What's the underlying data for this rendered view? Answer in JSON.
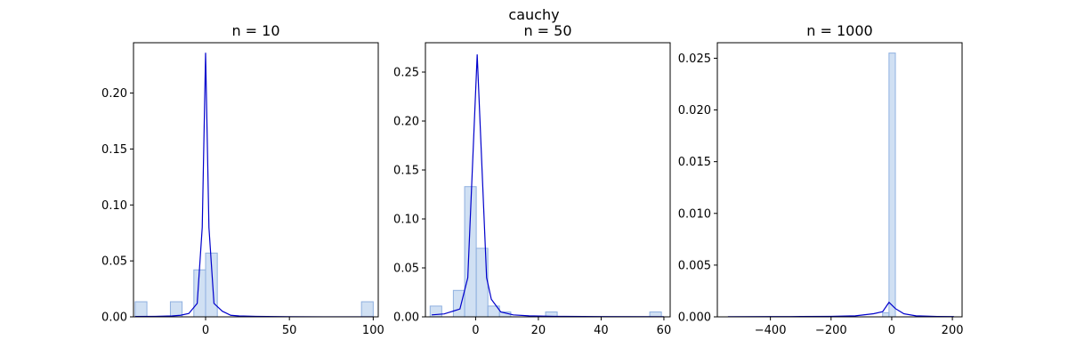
{
  "figure": {
    "title": "cauchy"
  },
  "chart_data": [
    {
      "type": "bar",
      "title": "n = 10",
      "xlim": [
        -43,
        103
      ],
      "ylim": [
        0,
        0.245
      ],
      "xticks": [
        0,
        50,
        100
      ],
      "xtick_labels": [
        "0",
        "50",
        "100"
      ],
      "yticks": [
        0,
        0.05,
        0.1,
        0.15,
        0.2
      ],
      "ytick_labels": [
        "0.00",
        "0.05",
        "0.10",
        "0.15",
        "0.20"
      ],
      "histogram": {
        "bins": [
          {
            "x0": -42,
            "x1": -35,
            "value": 0.0135
          },
          {
            "x0": -21,
            "x1": -14,
            "value": 0.0135
          },
          {
            "x0": -7,
            "x1": 0,
            "value": 0.042
          },
          {
            "x0": 0,
            "x1": 7,
            "value": 0.057
          },
          {
            "x0": 93,
            "x1": 100,
            "value": 0.0135
          }
        ],
        "fill": "#b7d0ec",
        "edge": "#8fb0e0"
      },
      "line": {
        "x": [
          -42,
          -30,
          -20,
          -15,
          -10,
          -5,
          -2,
          0,
          2,
          5,
          10,
          15,
          20,
          30,
          50,
          70,
          100
        ],
        "y": [
          0.0003,
          0.0004,
          0.0008,
          0.0014,
          0.003,
          0.012,
          0.08,
          0.236,
          0.08,
          0.012,
          0.005,
          0.0014,
          0.0008,
          0.0004,
          0.0001,
          6e-05,
          3e-05
        ],
        "color": "#0000cc"
      }
    },
    {
      "type": "bar",
      "title": "n = 50",
      "xlim": [
        -16,
        62
      ],
      "ylim": [
        0,
        0.28
      ],
      "xticks": [
        0,
        20,
        40,
        60
      ],
      "xtick_labels": [
        "0",
        "20",
        "40",
        "60"
      ],
      "yticks": [
        0,
        0.05,
        0.1,
        0.15,
        0.2,
        0.25
      ],
      "ytick_labels": [
        "0.00",
        "0.05",
        "0.10",
        "0.15",
        "0.20",
        "0.25"
      ],
      "histogram": {
        "bins": [
          {
            "x0": -14.5,
            "x1": -10.8,
            "value": 0.011
          },
          {
            "x0": -7.1,
            "x1": -3.5,
            "value": 0.027
          },
          {
            "x0": -3.5,
            "x1": 0.2,
            "value": 0.133
          },
          {
            "x0": 0.2,
            "x1": 3.9,
            "value": 0.07
          },
          {
            "x0": 3.9,
            "x1": 7.6,
            "value": 0.011
          },
          {
            "x0": 7.6,
            "x1": 11.2,
            "value": 0.005
          },
          {
            "x0": 22.3,
            "x1": 26.0,
            "value": 0.005
          },
          {
            "x0": 55.5,
            "x1": 59.2,
            "value": 0.005
          }
        ],
        "fill": "#b7d0ec",
        "edge": "#8fb0e0"
      },
      "line": {
        "x": [
          -14,
          -10,
          -5,
          -2.5,
          0.5,
          3.5,
          5,
          8,
          12,
          17,
          25,
          40,
          60
        ],
        "y": [
          0.002,
          0.003,
          0.008,
          0.04,
          0.268,
          0.04,
          0.018,
          0.005,
          0.002,
          0.001,
          0.0005,
          0.0002,
          0.0001
        ],
        "color": "#0000cc"
      }
    },
    {
      "type": "bar",
      "title": "n = 1000",
      "xlim": [
        -575,
        232
      ],
      "ylim": [
        0,
        0.0265
      ],
      "xticks": [
        -400,
        -200,
        0,
        200
      ],
      "xtick_labels": [
        "−400",
        "−200",
        "0",
        "200"
      ],
      "yticks": [
        0,
        0.005,
        0.01,
        0.015,
        0.02,
        0.025
      ],
      "ytick_labels": [
        "0.000",
        "0.005",
        "0.010",
        "0.015",
        "0.020",
        "0.025"
      ],
      "histogram": {
        "bins": [
          {
            "x0": -30,
            "x1": -9,
            "value": 0.0004
          },
          {
            "x0": -9,
            "x1": 12,
            "value": 0.0255
          }
        ],
        "fill": "#b7d0ec",
        "edge": "#8fb0e0"
      },
      "line": {
        "x": [
          -540,
          -400,
          -300,
          -200,
          -120,
          -60,
          -30,
          -9,
          12,
          40,
          80,
          150,
          205
        ],
        "y": [
          1e-05,
          2e-05,
          3e-05,
          5e-05,
          0.0001,
          0.0003,
          0.0005,
          0.0014,
          0.0008,
          0.0003,
          0.0001,
          4e-05,
          2e-05
        ],
        "color": "#0000cc"
      }
    }
  ]
}
